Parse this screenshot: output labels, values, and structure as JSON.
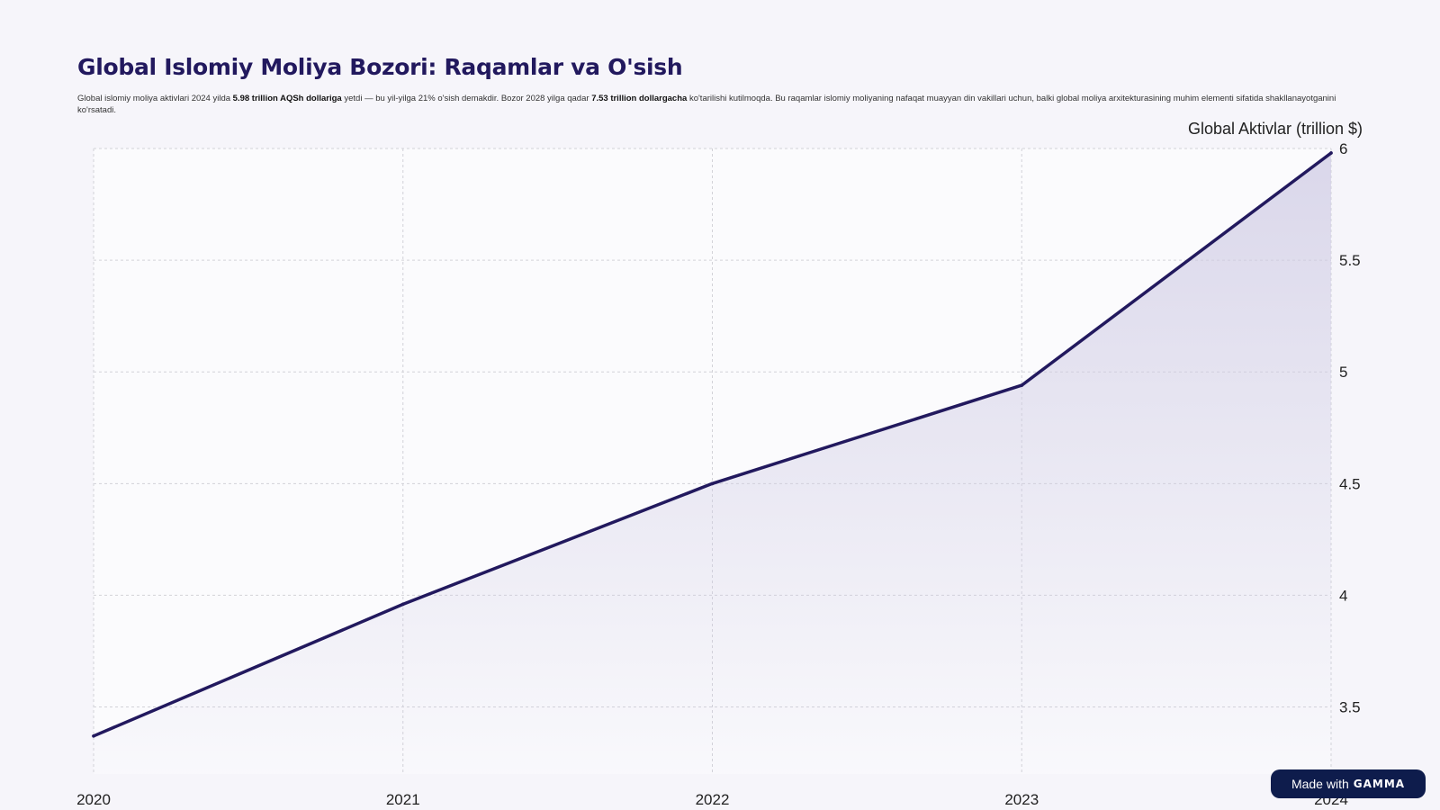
{
  "header": {
    "title": "Global Islomiy Moliya Bozori: Raqamlar va O'sish",
    "description": {
      "part1": "Global islomiy moliya aktivlari 2024 yilda ",
      "bold1": "5.98 trillion AQSh dollariga",
      "part2": " yetdi — bu yil-yilga 21% o'sish demakdir. Bozor 2028 yilga qadar ",
      "bold2": "7.53 trillion dollargacha",
      "part3": " ko'tarilishi kutilmoqda. Bu raqamlar islomiy moliyaning nafaqat muayyan din vakillari uchun, balki global moliya arxitekturasining muhim elementi sifatida shakllanayotganini ko'rsatadi."
    }
  },
  "chart_data": {
    "type": "area",
    "x": [
      "2020",
      "2021",
      "2022",
      "2023",
      "2024"
    ],
    "series": [
      {
        "name": "",
        "values": [
          3.37,
          3.96,
          4.5,
          4.94,
          5.98
        ]
      }
    ],
    "title": "",
    "xlabel": "",
    "ylabel": "Global Aktivlar (trillion $)",
    "ylim": [
      3.2,
      6.0
    ],
    "yticks": [
      3.5,
      4,
      4.5,
      5,
      5.5,
      6
    ],
    "ytick_labels": [
      "3.5",
      "4",
      "4.5",
      "5",
      "5.5",
      "6"
    ],
    "grid": true,
    "y_axis_position": "right",
    "colors": {
      "line": "#22195e",
      "fill": "#cfcbe4",
      "grid": "#d2d2d8"
    }
  },
  "badge": {
    "prefix": "Made with",
    "brand": "GAMMA"
  }
}
